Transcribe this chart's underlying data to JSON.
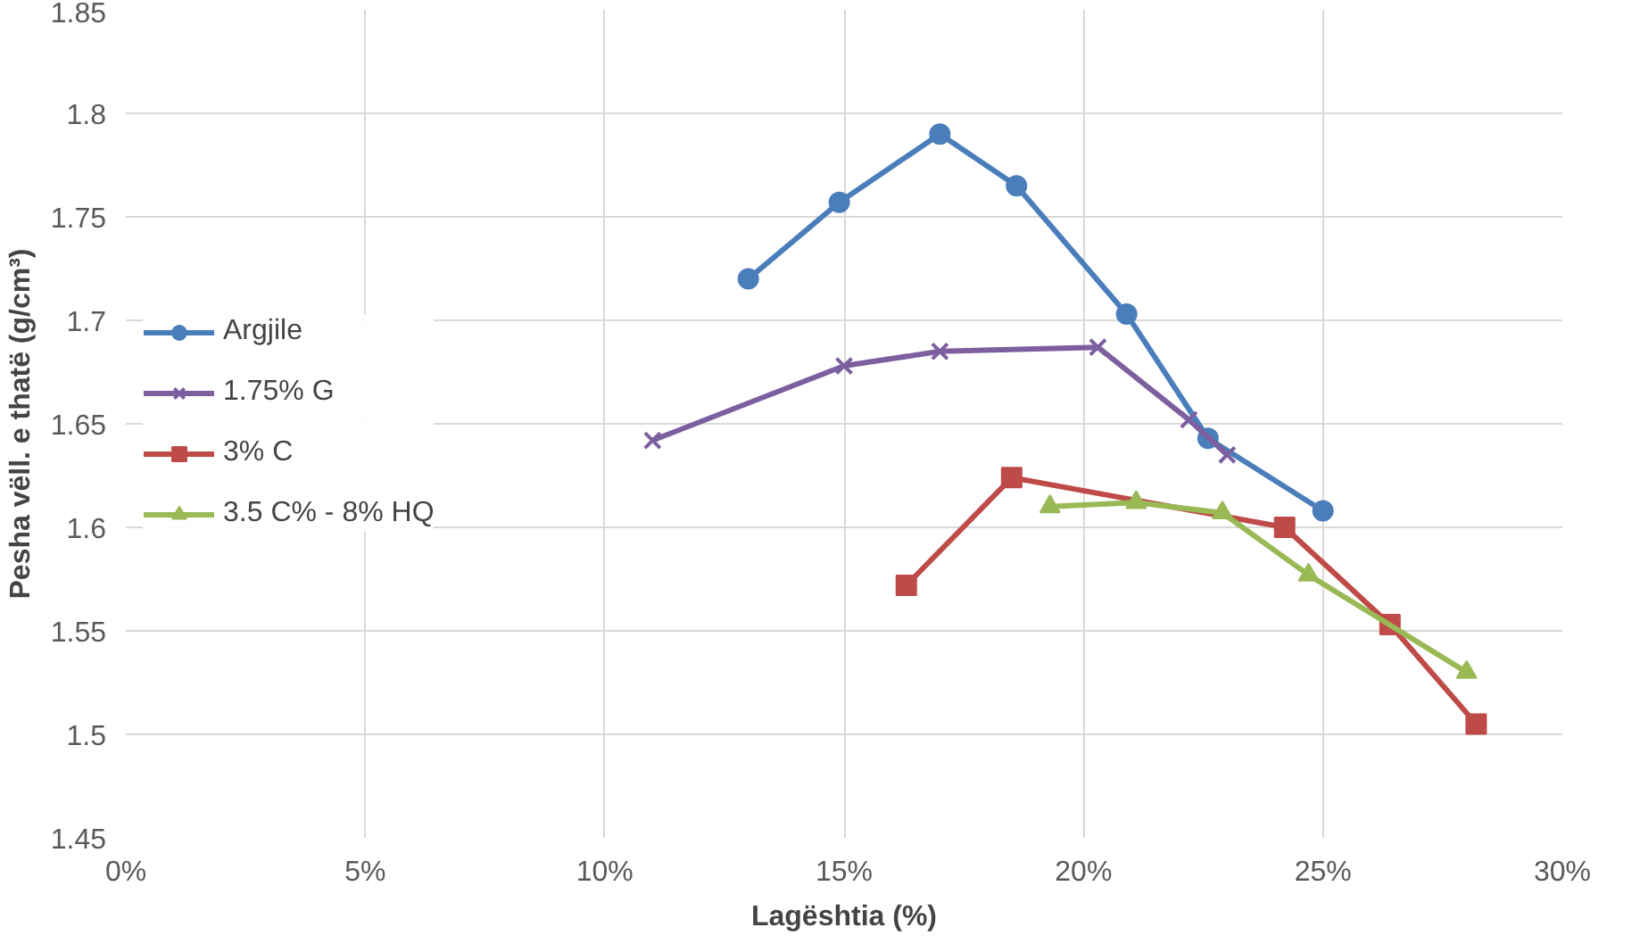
{
  "chart_data": {
    "type": "line",
    "xlabel": "Lagështia (%)",
    "ylabel": "Pesha vëll. e thatë (g/cm³)",
    "xlim": [
      0,
      30
    ],
    "ylim": [
      1.45,
      1.85
    ],
    "xticks": [
      {
        "value": 0,
        "label": "0%"
      },
      {
        "value": 5,
        "label": "5%"
      },
      {
        "value": 10,
        "label": "10%"
      },
      {
        "value": 15,
        "label": "15%"
      },
      {
        "value": 20,
        "label": "20%"
      },
      {
        "value": 25,
        "label": "25%"
      },
      {
        "value": 30,
        "label": "30%"
      }
    ],
    "yticks": [
      {
        "value": 1.45,
        "label": "1.45"
      },
      {
        "value": 1.5,
        "label": "1.5"
      },
      {
        "value": 1.55,
        "label": "1.55"
      },
      {
        "value": 1.6,
        "label": "1.6"
      },
      {
        "value": 1.65,
        "label": "1.65"
      },
      {
        "value": 1.7,
        "label": "1.7"
      },
      {
        "value": 1.75,
        "label": "1.75"
      },
      {
        "value": 1.8,
        "label": "1.8"
      },
      {
        "value": 1.85,
        "label": "1.85"
      }
    ],
    "grid": true,
    "legend": "left",
    "line_style": "solid",
    "series": [
      {
        "name": "Argjile",
        "color": "#4a7ebb",
        "marker": "circle",
        "x": [
          13,
          14.9,
          17,
          18.6,
          20.9,
          22.6,
          25
        ],
        "values": [
          1.72,
          1.757,
          1.79,
          1.765,
          1.703,
          1.643,
          1.608
        ]
      },
      {
        "name": "1.75% G",
        "color": "#7d5fa0",
        "marker": "cross",
        "x": [
          11,
          15,
          17,
          20.3,
          22.2,
          23
        ],
        "values": [
          1.642,
          1.678,
          1.685,
          1.687,
          1.652,
          1.635
        ]
      },
      {
        "name": "3% C",
        "color": "#be4b48",
        "marker": "square",
        "x": [
          16.3,
          18.5,
          24.2,
          26.4,
          28.2
        ],
        "values": [
          1.572,
          1.624,
          1.6,
          1.553,
          1.505
        ]
      },
      {
        "name": "3.5 C% - 8% HQ",
        "color": "#98b954",
        "marker": "triangle",
        "x": [
          19.3,
          21.1,
          22.9,
          24.7,
          28
        ],
        "values": [
          1.61,
          1.612,
          1.607,
          1.577,
          1.53
        ]
      }
    ]
  }
}
